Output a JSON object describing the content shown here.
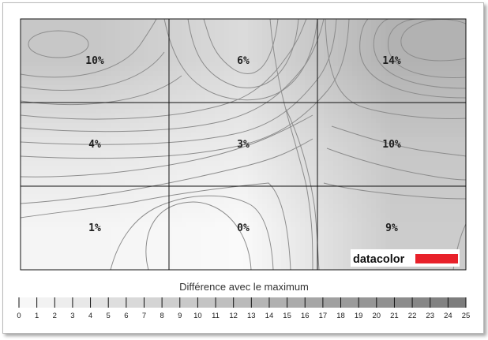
{
  "chart_data": {
    "type": "heatmap",
    "title": "",
    "grid": {
      "rows": 3,
      "cols": 3,
      "gridlines": true
    },
    "cells": [
      [
        10,
        6,
        14
      ],
      [
        4,
        3,
        10
      ],
      [
        1,
        0,
        9
      ]
    ],
    "cell_labels": [
      [
        "10%",
        "6%",
        "14%"
      ],
      [
        "4%",
        "3%",
        "10%"
      ],
      [
        "1%",
        "0%",
        "9%"
      ]
    ],
    "legend": {
      "title": "Différence avec le maximum",
      "placement": "bottom",
      "min": 0,
      "max": 25,
      "ticks": [
        "0",
        "1",
        "2",
        "3",
        "4",
        "5",
        "6",
        "7",
        "8",
        "9",
        "10",
        "11",
        "12",
        "13",
        "14",
        "15",
        "16",
        "17",
        "18",
        "19",
        "20",
        "21",
        "22",
        "23",
        "24",
        "25"
      ]
    }
  },
  "brand": {
    "name": "datacolor",
    "accent_color": "#e8212a"
  },
  "colors": {
    "low": "#fafafa",
    "high": "#7a7a7a",
    "contour": "#8c8c8c",
    "grid": "#111111"
  }
}
